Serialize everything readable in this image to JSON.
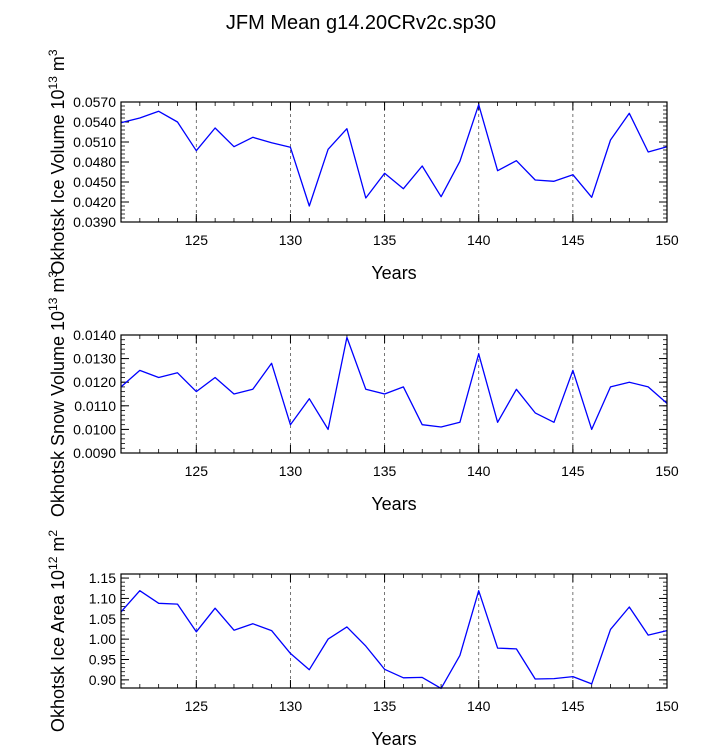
{
  "title": "JFM Mean g14.20CRv2c.sp30",
  "line_color": "#0000ff",
  "chart_data": [
    {
      "type": "line",
      "ylabel": "Okhotsk Ice Volume 10",
      "ylabel_exp": "13",
      "ylabel_unit": "m",
      "ylabel_unit_exp": "3",
      "xlabel": "Years",
      "xlim": [
        121,
        150
      ],
      "ylim": [
        0.039,
        0.057
      ],
      "yticks": [
        0.039,
        0.042,
        0.045,
        0.048,
        0.051,
        0.054,
        0.057
      ],
      "ytick_labels": [
        "0.0390",
        "0.0420",
        "0.0450",
        "0.0480",
        "0.0510",
        "0.0540",
        "0.0570"
      ],
      "yminor_step": 0.0006,
      "xticks": [
        125,
        130,
        135,
        140,
        145,
        150
      ],
      "xtick_labels": [
        "125",
        "130",
        "135",
        "140",
        "145",
        "150"
      ],
      "vlines": [
        125,
        130,
        135,
        140,
        145
      ],
      "x": [
        121,
        122,
        123,
        124,
        125,
        126,
        127,
        128,
        129,
        130,
        131,
        132,
        133,
        134,
        135,
        136,
        137,
        138,
        139,
        140,
        141,
        142,
        143,
        144,
        145,
        146,
        147,
        148,
        149,
        150
      ],
      "values": [
        0.0539,
        0.0546,
        0.0556,
        0.054,
        0.0497,
        0.0531,
        0.0503,
        0.0517,
        0.0509,
        0.0502,
        0.0414,
        0.0499,
        0.053,
        0.0426,
        0.0463,
        0.044,
        0.0474,
        0.0428,
        0.0481,
        0.0566,
        0.0467,
        0.0482,
        0.0453,
        0.0451,
        0.0461,
        0.0427,
        0.0513,
        0.0553,
        0.0495,
        0.0503
      ]
    },
    {
      "type": "line",
      "ylabel": "Okhotsk Snow Volume 10",
      "ylabel_exp": "13",
      "ylabel_unit": "m",
      "ylabel_unit_exp": "3",
      "xlabel": "Years",
      "xlim": [
        121,
        150
      ],
      "ylim": [
        0.009,
        0.014
      ],
      "yticks": [
        0.009,
        0.01,
        0.011,
        0.012,
        0.013,
        0.014
      ],
      "ytick_labels": [
        "0.0090",
        "0.0100",
        "0.0110",
        "0.0120",
        "0.0130",
        "0.0140"
      ],
      "yminor_step": 0.0002,
      "xticks": [
        125,
        130,
        135,
        140,
        145,
        150
      ],
      "xtick_labels": [
        "125",
        "130",
        "135",
        "140",
        "145",
        "150"
      ],
      "vlines": [
        125,
        130,
        135,
        140,
        145
      ],
      "x": [
        121,
        122,
        123,
        124,
        125,
        126,
        127,
        128,
        129,
        130,
        131,
        132,
        133,
        134,
        135,
        136,
        137,
        138,
        139,
        140,
        141,
        142,
        143,
        144,
        145,
        146,
        147,
        148,
        149,
        150
      ],
      "values": [
        0.0118,
        0.0125,
        0.0122,
        0.0124,
        0.0116,
        0.0122,
        0.0115,
        0.0117,
        0.0128,
        0.0102,
        0.0113,
        0.01,
        0.0139,
        0.0117,
        0.0115,
        0.0118,
        0.0102,
        0.0101,
        0.0103,
        0.0132,
        0.0103,
        0.0117,
        0.0107,
        0.0103,
        0.0125,
        0.01,
        0.0118,
        0.012,
        0.0118,
        0.0111
      ]
    },
    {
      "type": "line",
      "ylabel": "Okhotsk Ice Area 10",
      "ylabel_exp": "12",
      "ylabel_unit": "m",
      "ylabel_unit_exp": "2",
      "xlabel": "Years",
      "xlim": [
        121,
        150
      ],
      "ylim": [
        0.88,
        1.16
      ],
      "yticks": [
        0.9,
        0.95,
        1.0,
        1.05,
        1.1,
        1.15
      ],
      "ytick_labels": [
        "0.90",
        "0.95",
        "1.00",
        "1.05",
        "1.10",
        "1.15"
      ],
      "yminor_step": 0.01,
      "xticks": [
        125,
        130,
        135,
        140,
        145,
        150
      ],
      "xtick_labels": [
        "125",
        "130",
        "135",
        "140",
        "145",
        "150"
      ],
      "vlines": [
        125,
        130,
        135,
        140,
        145
      ],
      "x": [
        121,
        122,
        123,
        124,
        125,
        126,
        127,
        128,
        129,
        130,
        131,
        132,
        133,
        134,
        135,
        136,
        137,
        138,
        139,
        140,
        141,
        142,
        143,
        144,
        145,
        146,
        147,
        148,
        149,
        150
      ],
      "values": [
        1.067,
        1.119,
        1.088,
        1.086,
        1.018,
        1.076,
        1.022,
        1.038,
        1.021,
        0.965,
        0.925,
        1.0,
        1.03,
        0.983,
        0.926,
        0.905,
        0.906,
        0.879,
        0.96,
        1.119,
        0.978,
        0.976,
        0.902,
        0.903,
        0.908,
        0.89,
        1.024,
        1.079,
        1.01,
        1.021
      ]
    }
  ]
}
